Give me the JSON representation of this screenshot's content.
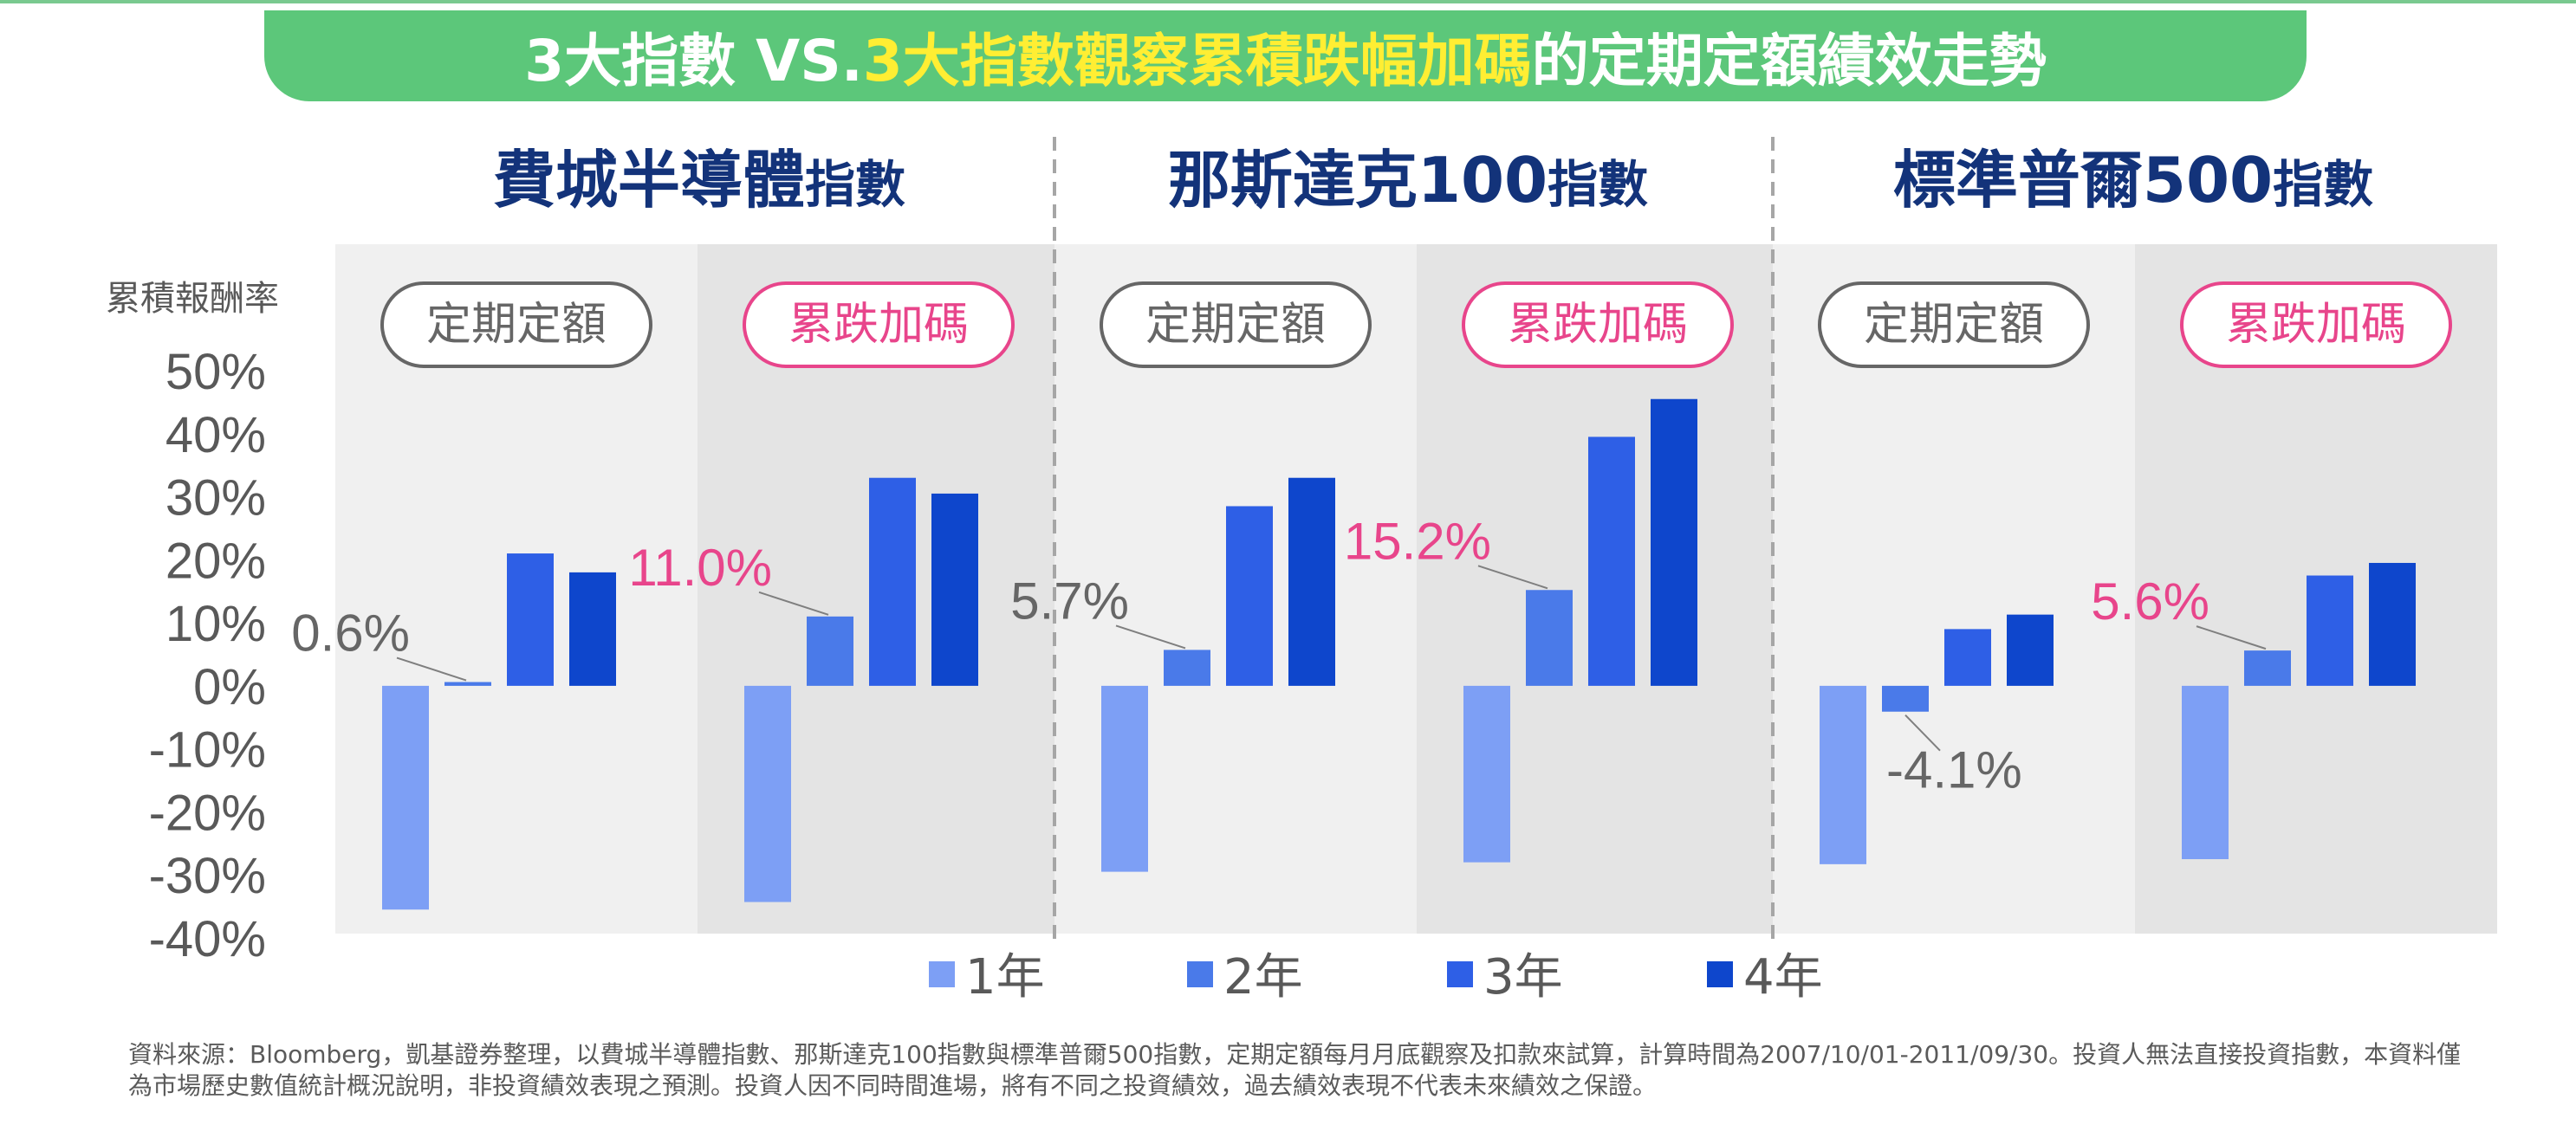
{
  "title": {
    "part1": "3大指數 VS. ",
    "part2": "3大指數觀察累積跌幅加碼",
    "part3": "的定期定額績效走勢",
    "highlight_color": "#ffee33"
  },
  "chart_data": {
    "type": "bar",
    "ylabel": "累積報酬率",
    "ylim": [
      -40,
      50
    ],
    "yticks": [
      "50%",
      "40%",
      "30%",
      "20%",
      "10%",
      "0%",
      "-10%",
      "-20%",
      "-30%",
      "-40%"
    ],
    "legend": [
      "1年",
      "2年",
      "3年",
      "4年"
    ],
    "legend_placement": "bottom",
    "series_colors": [
      "#7d9ff5",
      "#4a7ae9",
      "#2e5fe6",
      "#0e46cc"
    ],
    "groups": [
      {
        "name_main": "費城半導體",
        "name_suffix": "指數",
        "panels": [
          {
            "label": "定期定額",
            "kind": "regular",
            "values": [
              -35.5,
              0.6,
              21,
              18
            ],
            "annotation": "0.6%",
            "annotated_index": 1
          },
          {
            "label": "累跌加碼",
            "kind": "dip",
            "values": [
              -34.3,
              11.0,
              33,
              30.5
            ],
            "annotation": "11.0%",
            "annotated_index": 1
          }
        ]
      },
      {
        "name_main": "那斯達克100",
        "name_suffix": "指數",
        "panels": [
          {
            "label": "定期定額",
            "kind": "regular",
            "values": [
              -29.5,
              5.7,
              28.5,
              33
            ],
            "annotation": "5.7%",
            "annotated_index": 1
          },
          {
            "label": "累跌加碼",
            "kind": "dip",
            "values": [
              -28,
              15.2,
              39.5,
              45.5
            ],
            "annotation": "15.2%",
            "annotated_index": 1
          }
        ]
      },
      {
        "name_main": "標準普爾500",
        "name_suffix": "指數",
        "panels": [
          {
            "label": "定期定額",
            "kind": "regular",
            "values": [
              -28.3,
              -4.1,
              9,
              11.3
            ],
            "annotation": "-4.1%",
            "annotated_index": 1
          },
          {
            "label": "累跌加碼",
            "kind": "dip",
            "values": [
              -27.5,
              5.6,
              17.5,
              19.5
            ],
            "annotation": "5.6%",
            "annotated_index": 1
          }
        ]
      }
    ]
  },
  "colors": {
    "regular_label": "#666666",
    "dip_label": "#e8458b",
    "group_title": "#13337a",
    "panel_light": "#f0f0f0",
    "panel_dark": "#e4e4e4"
  },
  "source_note": "資料來源：Bloomberg，凱基證券整理，以費城半導體指數、那斯達克100指數與標準普爾500指數，定期定額每月月底觀察及扣款來試算，計算時間為2007/10/01-2011/09/30。投資人無法直接投資指數，本資料僅為市場歷史數值統計概況說明，非投資績效表現之預測。投資人因不同時間進場，將有不同之投資績效，過去績效表現不代表未來績效之保證。"
}
